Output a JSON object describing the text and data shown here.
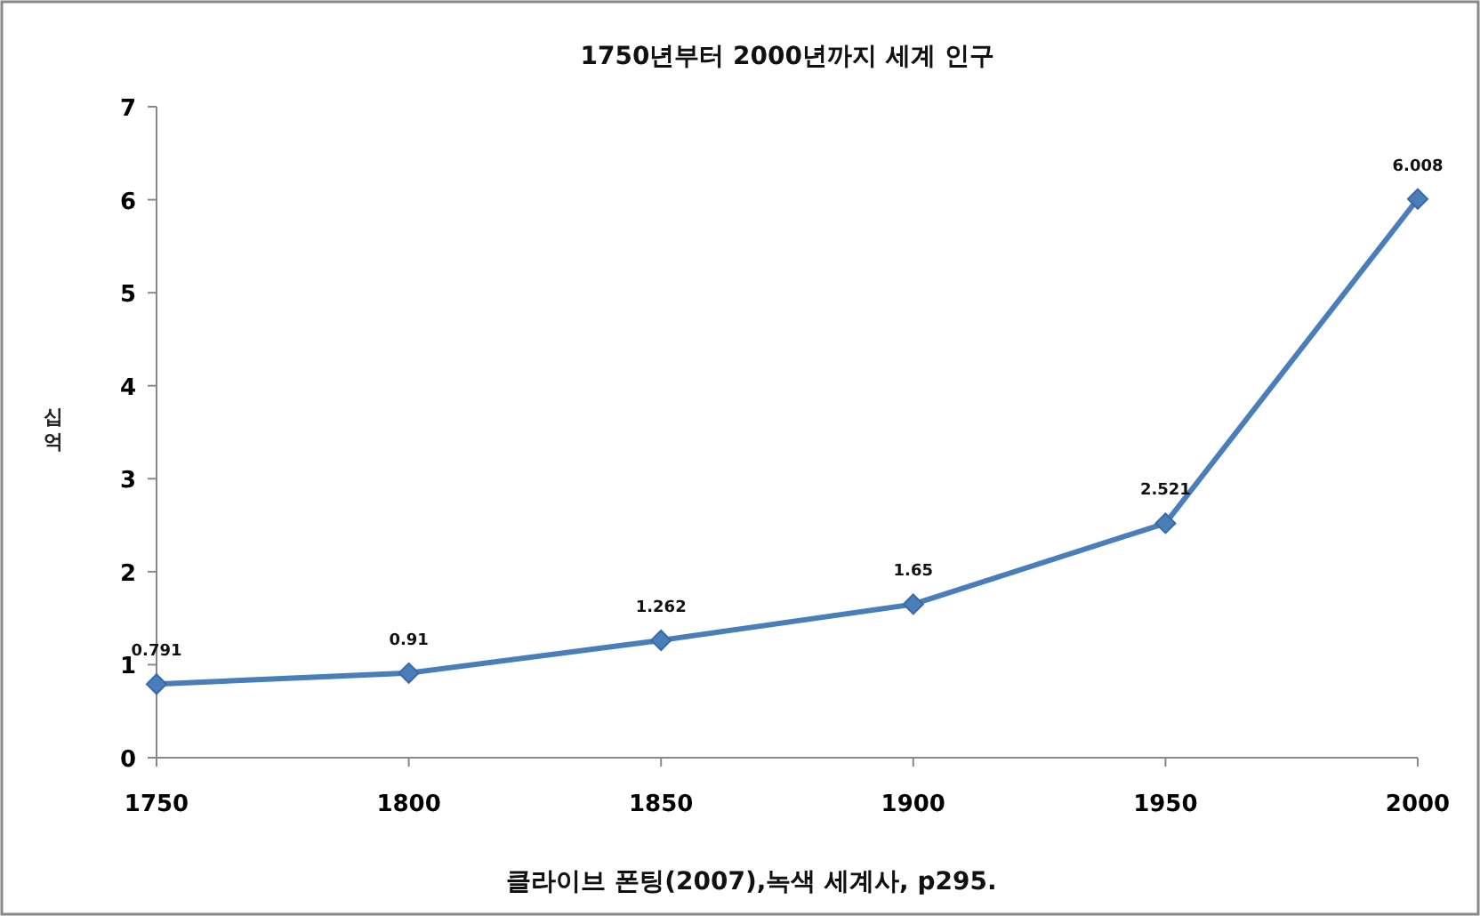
{
  "chart_data": {
    "type": "line",
    "title": "1750년부터 2000년까지 세계 인구",
    "ylabel": "십억",
    "x": [
      1750,
      1800,
      1850,
      1900,
      1950,
      2000
    ],
    "series": [
      {
        "color": "#4a7ebb",
        "values": [
          0.791,
          0.91,
          1.262,
          1.65,
          2.521,
          6.008
        ]
      }
    ],
    "xlim": [
      1750,
      2000
    ],
    "xticks": [
      1750,
      1800,
      1850,
      1900,
      1950,
      2000
    ],
    "ylim": [
      0,
      7
    ],
    "yticks": [
      0,
      1,
      2,
      3,
      4,
      5,
      6,
      7
    ],
    "grid": false,
    "marker": "diamond",
    "line_style": "solid",
    "data_labels": true,
    "annotations": [
      "클라이브 폰팅(2007),녹색 세계사, p295."
    ]
  }
}
